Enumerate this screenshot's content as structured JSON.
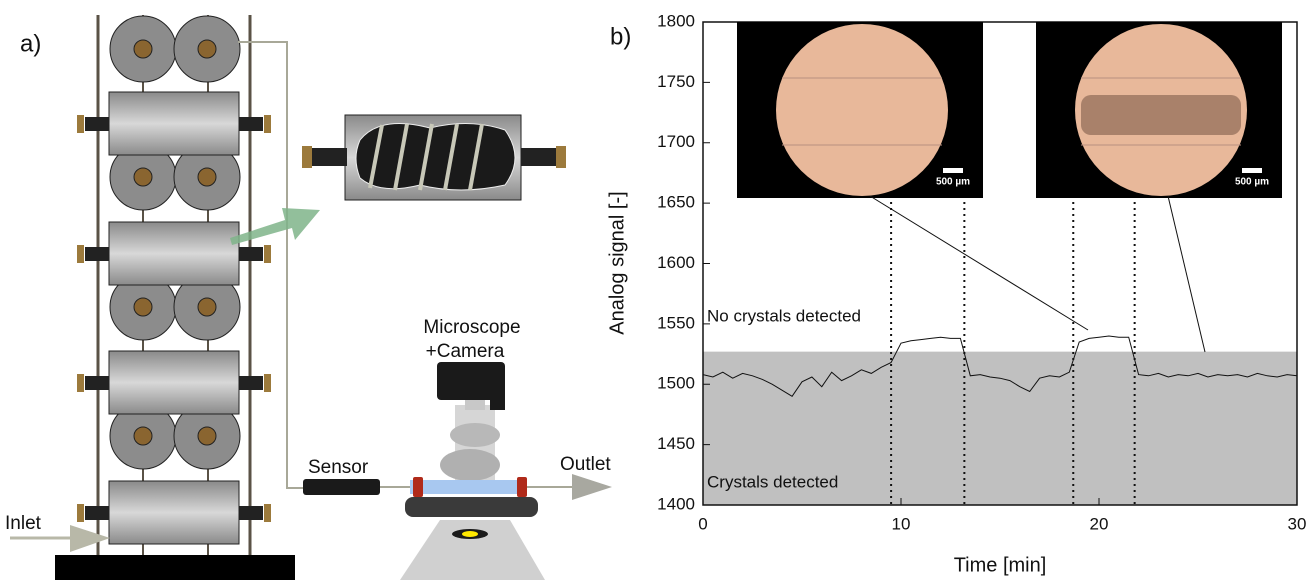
{
  "diagram": {
    "panel_label": "a)",
    "inlet": "Inlet",
    "sensor": "Sensor",
    "microscope": [
      "Microscope",
      "+Camera"
    ],
    "outlet": "Outlet"
  },
  "chart_data": {
    "type": "line",
    "panel_label": "b)",
    "x_label": "Time [min]",
    "y_label": "Analog signal [-]",
    "xlim": [
      0,
      30
    ],
    "ylim": [
      1400,
      1800
    ],
    "xticks": [
      0,
      10,
      20,
      30
    ],
    "yticks": [
      1400,
      1450,
      1500,
      1550,
      1600,
      1650,
      1700,
      1750,
      1800
    ],
    "threshold": 1527,
    "threshold_color": "#c0c0c0",
    "event_lines": [
      9.5,
      13.2,
      18.7,
      21.8
    ],
    "annotations": {
      "above": "No crystals detected",
      "below": "Crystals detected"
    },
    "scale_bars": [
      "500 µm",
      "500 µm"
    ],
    "series": [
      {
        "color": "#111111",
        "x": [
          0,
          0.5,
          1,
          1.5,
          2,
          2.5,
          3,
          3.5,
          4,
          4.5,
          5,
          5.5,
          6,
          6.5,
          7,
          7.5,
          8,
          8.5,
          9,
          9.5,
          10,
          10.5,
          11,
          11.5,
          12,
          12.5,
          13,
          13.5,
          14,
          14.5,
          15,
          15.5,
          16,
          16.5,
          17,
          17.5,
          18,
          18.5,
          19,
          19.5,
          20,
          20.5,
          21,
          21.5,
          22,
          22.5,
          23,
          23.5,
          24,
          24.5,
          25,
          25.5,
          26,
          26.5,
          27,
          27.5,
          28,
          28.5,
          29,
          29.5,
          30
        ],
        "values": [
          1508,
          1506,
          1510,
          1505,
          1509,
          1507,
          1504,
          1500,
          1495,
          1490,
          1502,
          1506,
          1498,
          1510,
          1503,
          1507,
          1512,
          1509,
          1514,
          1518,
          1534,
          1536,
          1537,
          1538,
          1539,
          1538,
          1538,
          1507,
          1508,
          1506,
          1505,
          1503,
          1498,
          1494,
          1505,
          1507,
          1506,
          1510,
          1535,
          1538,
          1539,
          1540,
          1539,
          1539,
          1508,
          1507,
          1509,
          1506,
          1508,
          1507,
          1509,
          1506,
          1508,
          1507,
          1508,
          1506,
          1509,
          1507,
          1506,
          1508,
          1507
        ]
      }
    ]
  }
}
